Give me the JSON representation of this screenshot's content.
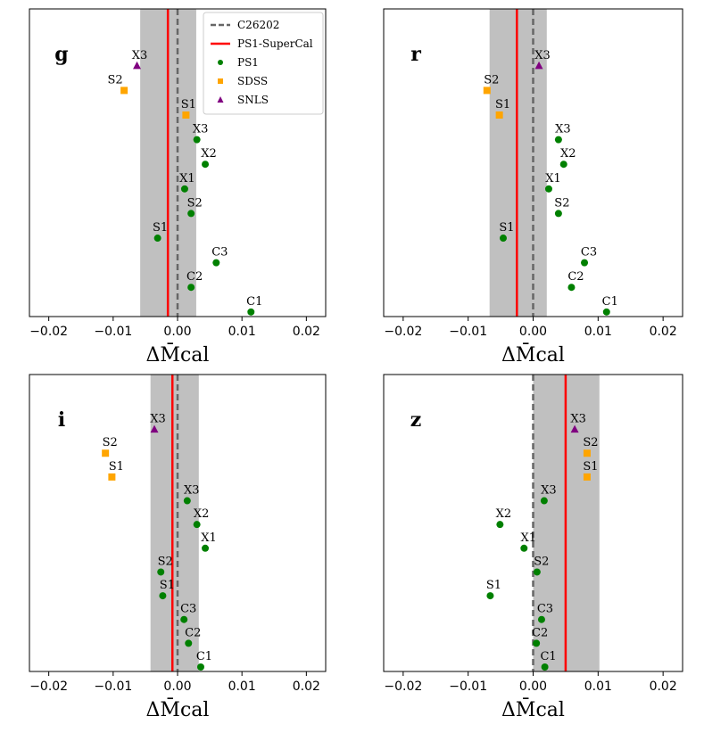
{
  "chart_data": [
    {
      "type": "scatter",
      "band": "g",
      "xlabel": "ΔM̄cal",
      "xlim": [
        -0.023,
        0.023
      ],
      "xticks": [
        -0.02,
        -0.01,
        0.0,
        0.01,
        0.02
      ],
      "xticklabels": [
        "−0.02",
        "−0.01",
        "0.00",
        "0.01",
        "0.02"
      ],
      "reference_line": 0.0,
      "supercal_line": -0.0015,
      "band_range": [
        -0.0058,
        0.0029
      ],
      "points": [
        {
          "label": "X3",
          "survey": "SNLS",
          "value": -0.0063
        },
        {
          "label": "S2",
          "survey": "SDSS",
          "value": -0.0083
        },
        {
          "label": "S1",
          "survey": "SDSS",
          "value": 0.0013
        },
        {
          "label": "X3",
          "survey": "PS1",
          "value": 0.003
        },
        {
          "label": "X2",
          "survey": "PS1",
          "value": 0.0043
        },
        {
          "label": "X1",
          "survey": "PS1",
          "value": 0.0011
        },
        {
          "label": "S2",
          "survey": "PS1",
          "value": 0.0021
        },
        {
          "label": "S1",
          "survey": "PS1",
          "value": -0.0031
        },
        {
          "label": "C3",
          "survey": "PS1",
          "value": 0.006
        },
        {
          "label": "C2",
          "survey": "PS1",
          "value": 0.0021
        },
        {
          "label": "C1",
          "survey": "PS1",
          "value": 0.0114
        }
      ]
    },
    {
      "type": "scatter",
      "band": "r",
      "xlabel": "ΔM̄cal",
      "xlim": [
        -0.023,
        0.023
      ],
      "xticks": [
        -0.02,
        -0.01,
        0.0,
        0.01,
        0.02
      ],
      "xticklabels": [
        "−0.02",
        "−0.01",
        "0.00",
        "0.01",
        "0.02"
      ],
      "reference_line": 0.0,
      "supercal_line": -0.0025,
      "band_range": [
        -0.0067,
        0.0021
      ],
      "points": [
        {
          "label": "X3",
          "survey": "SNLS",
          "value": 0.0009
        },
        {
          "label": "S2",
          "survey": "SDSS",
          "value": -0.0071
        },
        {
          "label": "S1",
          "survey": "SDSS",
          "value": -0.0052
        },
        {
          "label": "X3",
          "survey": "PS1",
          "value": 0.0039
        },
        {
          "label": "X2",
          "survey": "PS1",
          "value": 0.0047
        },
        {
          "label": "X1",
          "survey": "PS1",
          "value": 0.0024
        },
        {
          "label": "S2",
          "survey": "PS1",
          "value": 0.0039
        },
        {
          "label": "S1",
          "survey": "PS1",
          "value": -0.0046
        },
        {
          "label": "C3",
          "survey": "PS1",
          "value": 0.0079
        },
        {
          "label": "C2",
          "survey": "PS1",
          "value": 0.0059
        },
        {
          "label": "C1",
          "survey": "PS1",
          "value": 0.0113
        }
      ]
    },
    {
      "type": "scatter",
      "band": "i",
      "xlabel": "ΔM̄cal",
      "xlim": [
        -0.023,
        0.023
      ],
      "xticks": [
        -0.02,
        -0.01,
        0.0,
        0.01,
        0.02
      ],
      "xticklabels": [
        "−0.02",
        "−0.01",
        "0.00",
        "0.01",
        "0.02"
      ],
      "reference_line": 0.0,
      "supercal_line": -0.0008,
      "band_range": [
        -0.0042,
        0.0033
      ],
      "points": [
        {
          "label": "X3",
          "survey": "SNLS",
          "value": -0.0036
        },
        {
          "label": "S2",
          "survey": "SDSS",
          "value": -0.0112
        },
        {
          "label": "S1",
          "survey": "SDSS",
          "value": -0.0102
        },
        {
          "label": "X3",
          "survey": "PS1",
          "value": 0.0015
        },
        {
          "label": "X2",
          "survey": "PS1",
          "value": 0.003
        },
        {
          "label": "X1",
          "survey": "PS1",
          "value": 0.0043
        },
        {
          "label": "S2",
          "survey": "PS1",
          "value": -0.0026
        },
        {
          "label": "S1",
          "survey": "PS1",
          "value": -0.0023
        },
        {
          "label": "C3",
          "survey": "PS1",
          "value": 0.001
        },
        {
          "label": "C2",
          "survey": "PS1",
          "value": 0.0017
        },
        {
          "label": "C1",
          "survey": "PS1",
          "value": 0.0036
        }
      ]
    },
    {
      "type": "scatter",
      "band": "z",
      "xlabel": "ΔM̄cal",
      "xlim": [
        -0.023,
        0.023
      ],
      "xticks": [
        -0.02,
        -0.01,
        0.0,
        0.01,
        0.02
      ],
      "xticklabels": [
        "−0.02",
        "−0.01",
        "0.00",
        "0.01",
        "0.02"
      ],
      "reference_line": 0.0,
      "supercal_line": 0.005,
      "band_range": [
        0.0,
        0.0102
      ],
      "points": [
        {
          "label": "X3",
          "survey": "SNLS",
          "value": 0.0064
        },
        {
          "label": "S2",
          "survey": "SDSS",
          "value": 0.0083
        },
        {
          "label": "S1",
          "survey": "SDSS",
          "value": 0.0083
        },
        {
          "label": "X3",
          "survey": "PS1",
          "value": 0.0017
        },
        {
          "label": "X2",
          "survey": "PS1",
          "value": -0.0051
        },
        {
          "label": "X1",
          "survey": "PS1",
          "value": -0.0014
        },
        {
          "label": "S2",
          "survey": "PS1",
          "value": 0.0006
        },
        {
          "label": "S1",
          "survey": "PS1",
          "value": -0.0066
        },
        {
          "label": "C3",
          "survey": "PS1",
          "value": 0.0013
        },
        {
          "label": "C2",
          "survey": "PS1",
          "value": 0.0005
        },
        {
          "label": "C1",
          "survey": "PS1",
          "value": 0.0018
        }
      ]
    }
  ],
  "legend": {
    "location": "top-right of first panel",
    "entries": [
      {
        "label": "C26202",
        "kind": "dashed-line",
        "color": "#666666"
      },
      {
        "label": "PS1-SuperCal",
        "kind": "line",
        "color": "#ff0000"
      },
      {
        "label": "PS1",
        "kind": "circle",
        "color": "#008000"
      },
      {
        "label": "SDSS",
        "kind": "square",
        "color": "#ffa500"
      },
      {
        "label": "SNLS",
        "kind": "triangle",
        "color": "#800080"
      }
    ]
  },
  "colors": {
    "PS1": "#008000",
    "SDSS": "#ffa500",
    "SNLS": "#800080",
    "supercal": "#ff0000",
    "reference": "#666666",
    "band": "#c0c0c0"
  }
}
